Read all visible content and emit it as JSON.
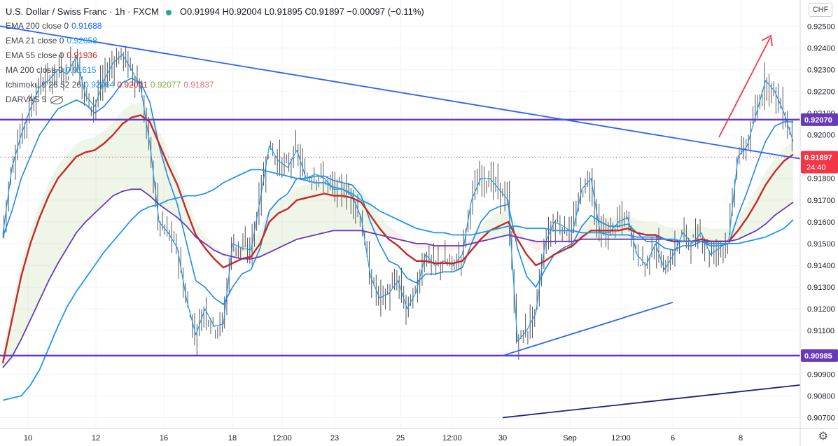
{
  "legend": {
    "symbol": "U.S. Dollar / Swiss Franc · 1h · FXCM",
    "ohlc": "O0.91994 H0.92004 L0.91895 C0.91897 −0.00097 (−0.11%)",
    "indicators": [
      {
        "name": "EMA 200 close 0",
        "values": [
          "0.91688"
        ],
        "colors": [
          "#2962ff"
        ]
      },
      {
        "name": "EMA 21 close 0",
        "values": [
          "0.92058"
        ],
        "colors": [
          "#2196f3"
        ]
      },
      {
        "name": "EMA 55 close 0",
        "values": [
          "0.91936"
        ],
        "colors": [
          "#c62828"
        ]
      },
      {
        "name": "MA 200 close 0",
        "values": [
          "0.91615"
        ],
        "colors": [
          "#2196f3"
        ]
      },
      {
        "name": "Ichimoku 9 26 52 26",
        "values": [
          "0.92064",
          "0.92091",
          "0.92077",
          "0.91837"
        ],
        "colors": [
          "#2196f3",
          "#c62828",
          "#7cb342",
          "#e57373"
        ]
      },
      {
        "name": "DARVAS 5",
        "values": [],
        "colors": []
      }
    ]
  },
  "currency_button": "CHF",
  "colors": {
    "up": "#26a69a",
    "level_line": "#673ab7",
    "trend_line": "#2962ff",
    "price_tag": "#f23645",
    "arrow": "#f23645",
    "ema200": "#673ab7",
    "ema21": "#2196f3",
    "ema55": "#c62828",
    "ma200": "#2196f3"
  },
  "chart_data": {
    "type": "line",
    "y_ticks": [
      "0.90700",
      "0.90800",
      "0.90900",
      "0.91000",
      "0.91100",
      "0.91200",
      "0.91300",
      "0.91400",
      "0.91500",
      "0.91600",
      "0.91700",
      "0.91800",
      "0.91900",
      "0.92000",
      "0.92100",
      "0.92200",
      "0.92300",
      "0.92400",
      "0.92500"
    ],
    "ylim": [
      0.9065,
      0.9262
    ],
    "x_ticks": [
      "10",
      "12",
      "16",
      "18",
      "12:00",
      "23",
      "25",
      "12:00",
      "30",
      "Sep",
      "12:00",
      "6",
      "8"
    ],
    "price_labels": [
      {
        "label": "0.92070",
        "value": 0.9207
      },
      {
        "label": "0.90985",
        "value": 0.90985
      }
    ],
    "current_price": {
      "label": "0.91897",
      "value": 0.91897,
      "countdown": "24:40"
    },
    "horizontal_levels": [
      0.9207,
      0.90985
    ],
    "trend_lines": [
      {
        "from": [
          0,
          0.925
        ],
        "to": [
          "end",
          0.9189
        ]
      },
      {
        "from": [
          "30",
          0.90985
        ],
        "to": [
          "6",
          0.9123
        ]
      },
      {
        "from": [
          "30",
          0.907
        ],
        "to": [
          "end",
          0.9085
        ]
      }
    ],
    "series": [
      {
        "values": [
          0.9154,
          0.9185,
          0.92,
          0.9212,
          0.9222,
          0.9225,
          0.923,
          0.9228,
          0.9236,
          0.9218,
          0.9213,
          0.9225,
          0.9233,
          0.9237,
          0.923,
          0.9222,
          0.9196,
          0.916,
          0.9155,
          0.9148,
          0.9124,
          0.9108,
          0.912,
          0.9112,
          0.9113,
          0.915,
          0.9148,
          0.9147,
          0.917,
          0.9195,
          0.9188,
          0.9185,
          0.9193,
          0.918,
          0.9182,
          0.918,
          0.9175,
          0.9175,
          0.9172,
          0.9162,
          0.9135,
          0.9125,
          0.9127,
          0.9133,
          0.912,
          0.9128,
          0.9145,
          0.914,
          0.9142,
          0.914,
          0.9145,
          0.917,
          0.918,
          0.918,
          0.9175,
          0.917,
          0.9105,
          0.911,
          0.9118,
          0.915,
          0.916,
          0.9158,
          0.9155,
          0.9175,
          0.918,
          0.9155,
          0.9155,
          0.916,
          0.9162,
          0.9145,
          0.914,
          0.915,
          0.9138,
          0.9145,
          0.9155,
          0.915,
          0.9155,
          0.9145,
          0.9148,
          0.9152,
          0.919,
          0.9195,
          0.921,
          0.9225,
          0.922,
          0.921,
          0.9197
        ]
      },
      {
        "values": [
          0.9153,
          0.9165,
          0.918,
          0.919,
          0.92,
          0.9206,
          0.9212,
          0.9214,
          0.9216,
          0.9214,
          0.921,
          0.9213,
          0.9218,
          0.9224,
          0.9226,
          0.9224,
          0.9215,
          0.9195,
          0.918,
          0.9168,
          0.915,
          0.9133,
          0.913,
          0.9125,
          0.9122,
          0.913,
          0.9136,
          0.9138,
          0.9148,
          0.9165,
          0.917,
          0.9173,
          0.918,
          0.918,
          0.9181,
          0.9181,
          0.9179,
          0.9178,
          0.9177,
          0.9172,
          0.916,
          0.915,
          0.9142,
          0.914,
          0.9134,
          0.9132,
          0.9136,
          0.9136,
          0.9137,
          0.9137,
          0.9139,
          0.915,
          0.916,
          0.9165,
          0.9167,
          0.9168,
          0.9148,
          0.9135,
          0.913,
          0.9138,
          0.9145,
          0.9148,
          0.915,
          0.9158,
          0.9163,
          0.916,
          0.9158,
          0.9158,
          0.9159,
          0.9155,
          0.9151,
          0.9151,
          0.9148,
          0.9147,
          0.9149,
          0.9149,
          0.9151,
          0.9149,
          0.9149,
          0.915,
          0.9163,
          0.9174,
          0.9186,
          0.9197,
          0.9204,
          0.9206,
          0.9206
        ]
      },
      {
        "values": [
          0.9095,
          0.9115,
          0.9135,
          0.915,
          0.9162,
          0.9172,
          0.918,
          0.9185,
          0.919,
          0.9192,
          0.9193,
          0.9196,
          0.92,
          0.9205,
          0.9208,
          0.9209,
          0.9206,
          0.9196,
          0.9186,
          0.9177,
          0.9165,
          0.9154,
          0.9148,
          0.9143,
          0.9139,
          0.9141,
          0.9143,
          0.9144,
          0.915,
          0.916,
          0.9164,
          0.9166,
          0.917,
          0.9171,
          0.9172,
          0.9173,
          0.9172,
          0.9172,
          0.9171,
          0.9169,
          0.9163,
          0.9157,
          0.9152,
          0.9149,
          0.9145,
          0.9142,
          0.9142,
          0.9141,
          0.9141,
          0.9141,
          0.9142,
          0.9147,
          0.9152,
          0.9156,
          0.9158,
          0.916,
          0.9152,
          0.9145,
          0.914,
          0.9142,
          0.9145,
          0.9147,
          0.9149,
          0.9153,
          0.9156,
          0.9156,
          0.9156,
          0.9156,
          0.9157,
          0.9155,
          0.9154,
          0.9154,
          0.9152,
          0.9151,
          0.9151,
          0.9151,
          0.9152,
          0.9151,
          0.9151,
          0.9151,
          0.9156,
          0.9162,
          0.9169,
          0.9177,
          0.9183,
          0.9188,
          0.9191
        ]
      },
      {
        "values": [
          0.9093,
          0.9098,
          0.9106,
          0.9115,
          0.9124,
          0.9133,
          0.9141,
          0.9148,
          0.9155,
          0.916,
          0.9164,
          0.9168,
          0.9172,
          0.9174,
          0.9175,
          0.9175,
          0.9172,
          0.9168,
          0.9165,
          0.9162,
          0.9158,
          0.9153,
          0.915,
          0.9147,
          0.9145,
          0.9144,
          0.9143,
          0.9143,
          0.9144,
          0.9146,
          0.9148,
          0.915,
          0.9152,
          0.9153,
          0.9154,
          0.9155,
          0.9156,
          0.9156,
          0.9156,
          0.9156,
          0.9155,
          0.9154,
          0.9153,
          0.9152,
          0.9151,
          0.915,
          0.915,
          0.9149,
          0.9149,
          0.9149,
          0.9149,
          0.915,
          0.9151,
          0.9152,
          0.9153,
          0.9154,
          0.9153,
          0.9152,
          0.9151,
          0.9151,
          0.9151,
          0.9151,
          0.9151,
          0.9152,
          0.9152,
          0.9152,
          0.9152,
          0.9152,
          0.9152,
          0.9152,
          0.9152,
          0.9152,
          0.9152,
          0.9151,
          0.9151,
          0.9151,
          0.9151,
          0.9151,
          0.9151,
          0.9151,
          0.9152,
          0.9154,
          0.9156,
          0.9159,
          0.9163,
          0.9166,
          0.9169
        ]
      },
      {
        "values": [
          0.9078,
          0.9079,
          0.908,
          0.9085,
          0.9092,
          0.9102,
          0.9112,
          0.9121,
          0.9128,
          0.9134,
          0.914,
          0.9146,
          0.9151,
          0.9156,
          0.9161,
          0.9165,
          0.9167,
          0.9168,
          0.917,
          0.9171,
          0.9172,
          0.9172,
          0.9173,
          0.9175,
          0.9178,
          0.918,
          0.9182,
          0.9184,
          0.9184,
          0.9183,
          0.9182,
          0.9181,
          0.918,
          0.9179,
          0.9178,
          0.9178,
          0.9176,
          0.9175,
          0.9173,
          0.917,
          0.9168,
          0.9165,
          0.9163,
          0.9161,
          0.9159,
          0.9157,
          0.9156,
          0.9155,
          0.9155,
          0.9154,
          0.9154,
          0.9154,
          0.9155,
          0.9156,
          0.9157,
          0.9158,
          0.9158,
          0.9157,
          0.9157,
          0.9157,
          0.9156,
          0.9156,
          0.9156,
          0.9155,
          0.9155,
          0.9155,
          0.9154,
          0.9154,
          0.9154,
          0.9153,
          0.9153,
          0.9153,
          0.9152,
          0.9152,
          0.9151,
          0.9151,
          0.9151,
          0.915,
          0.915,
          0.915,
          0.915,
          0.9151,
          0.9152,
          0.9153,
          0.9155,
          0.9157,
          0.9161
        ]
      }
    ]
  }
}
